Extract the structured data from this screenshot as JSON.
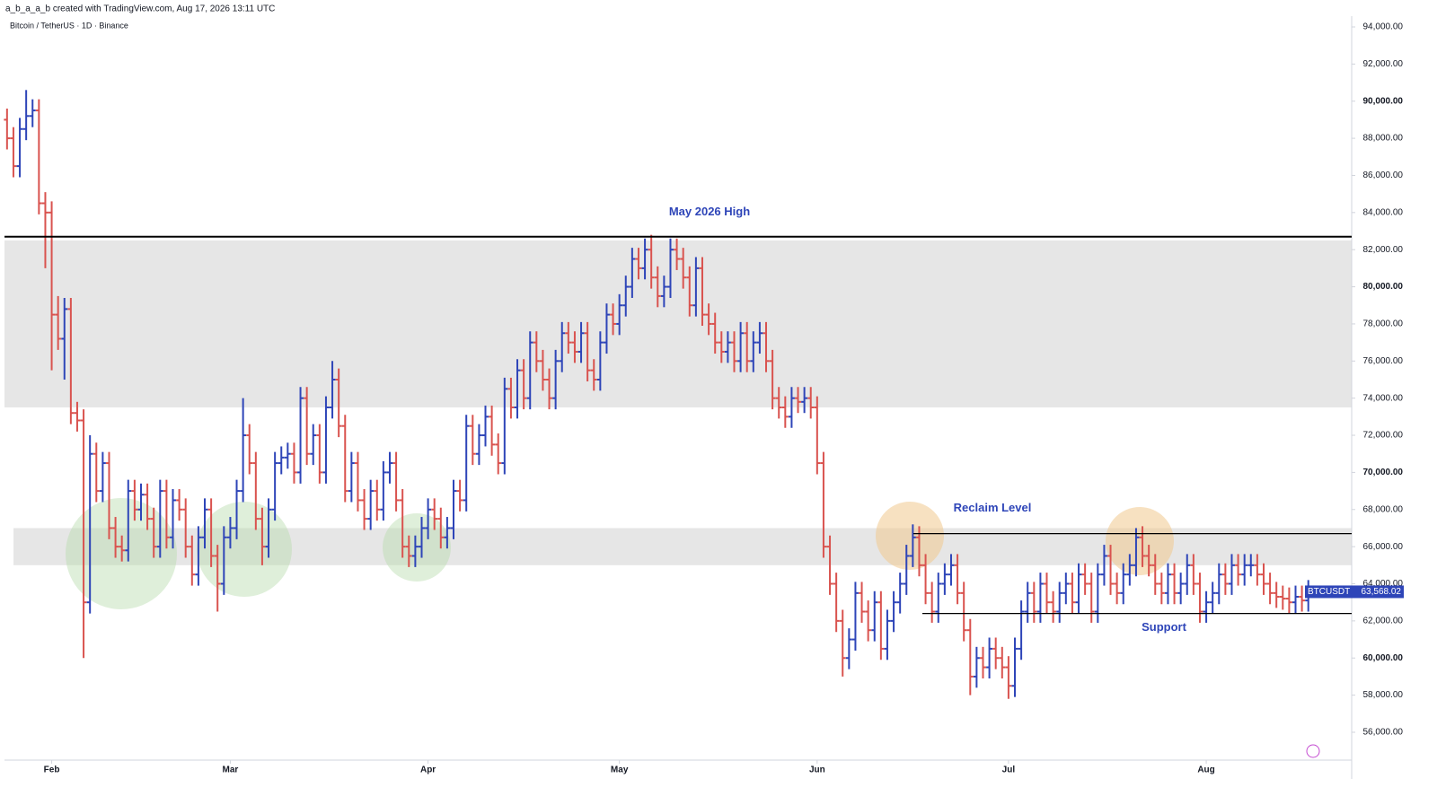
{
  "header": {
    "credit": "a_b_a_a_b created with TradingView.com, Aug 17, 2026 13:11 UTC"
  },
  "chart_data": {
    "type": "ohlc",
    "title": "Bitcoin / TetherUS · 1D · Binance",
    "up_color": "#2e45b8",
    "down_color": "#d9534f",
    "ylim": [
      54500,
      94580
    ],
    "xlim": [
      -0.4,
      210.8
    ],
    "yticks": [
      {
        "value": 56000,
        "label": "56,000.00"
      },
      {
        "value": 58000,
        "label": "58,000.00"
      },
      {
        "value": 60000,
        "label": "60,000.00"
      },
      {
        "value": 62000,
        "label": "62,000.00"
      },
      {
        "value": 64000,
        "label": "64,000.00"
      },
      {
        "value": 66000,
        "label": "66,000.00"
      },
      {
        "value": 68000,
        "label": "68,000.00"
      },
      {
        "value": 70000,
        "label": "70,000.00"
      },
      {
        "value": 72000,
        "label": "72,000.00"
      },
      {
        "value": 74000,
        "label": "74,000.00"
      },
      {
        "value": 76000,
        "label": "76,000.00"
      },
      {
        "value": 78000,
        "label": "78,000.00"
      },
      {
        "value": 80000,
        "label": "80,000.00"
      },
      {
        "value": 82000,
        "label": "82,000.00"
      },
      {
        "value": 84000,
        "label": "84,000.00"
      },
      {
        "value": 86000,
        "label": "86,000.00"
      },
      {
        "value": 88000,
        "label": "88,000.00"
      },
      {
        "value": 90000,
        "label": "90,000.00"
      },
      {
        "value": 92000,
        "label": "92,000.00"
      },
      {
        "value": 94000,
        "label": "94,000.00"
      }
    ],
    "xticks": [
      {
        "value": 7,
        "label": "Feb"
      },
      {
        "value": 35,
        "label": "Mar"
      },
      {
        "value": 66,
        "label": "Apr"
      },
      {
        "value": 96,
        "label": "May"
      },
      {
        "value": 127,
        "label": "Jun"
      },
      {
        "value": 157,
        "label": "Jul"
      },
      {
        "value": 188,
        "label": "Aug"
      }
    ],
    "zones": [
      [
        73500,
        82500
      ],
      [
        65000,
        67000
      ]
    ],
    "levels": [
      {
        "label": "May 2026 High",
        "value": 82700
      },
      {
        "label": "Reclaim Level",
        "value": 66700
      },
      {
        "label": "Support",
        "value": 62400
      }
    ],
    "last_price": {
      "symbol": "BTCUSDT",
      "label": "63,568.02"
    },
    "ohlc": [
      [
        89000,
        89600,
        87400,
        88000
      ],
      [
        88000,
        88600,
        85900,
        86500
      ],
      [
        86500,
        89100,
        85900,
        88500
      ],
      [
        88500,
        90600,
        87900,
        89200
      ],
      [
        89200,
        90100,
        88600,
        89500
      ],
      [
        89500,
        90100,
        83900,
        84500
      ],
      [
        84500,
        85100,
        81000,
        84000
      ],
      [
        84000,
        84600,
        75500,
        78500
      ],
      [
        78500,
        79500,
        76600,
        77200
      ],
      [
        77200,
        79400,
        75000,
        78800
      ],
      [
        78800,
        79400,
        72600,
        73200
      ],
      [
        73200,
        73800,
        72200,
        72800
      ],
      [
        72800,
        73400,
        60000,
        63000
      ],
      [
        63000,
        72000,
        62400,
        71000
      ],
      [
        71000,
        71600,
        68400,
        69000
      ],
      [
        69000,
        71100,
        68400,
        70500
      ],
      [
        70500,
        71100,
        66400,
        67000
      ],
      [
        67000,
        67600,
        65400,
        66000
      ],
      [
        66000,
        66600,
        65200,
        65800
      ],
      [
        65800,
        69600,
        65200,
        69000
      ],
      [
        69000,
        69600,
        67400,
        68000
      ],
      [
        68000,
        69400,
        67400,
        68800
      ],
      [
        68800,
        69400,
        66900,
        67500
      ],
      [
        67500,
        68100,
        65400,
        66000
      ],
      [
        66000,
        69600,
        65400,
        69000
      ],
      [
        69000,
        69600,
        65900,
        66500
      ],
      [
        66500,
        69100,
        65900,
        68500
      ],
      [
        68500,
        69100,
        67400,
        68000
      ],
      [
        68000,
        68600,
        65400,
        66000
      ],
      [
        66000,
        66600,
        63900,
        64500
      ],
      [
        64500,
        67100,
        63900,
        66500
      ],
      [
        66500,
        68600,
        65900,
        68000
      ],
      [
        68000,
        68600,
        64900,
        65500
      ],
      [
        65500,
        66100,
        62500,
        64000
      ],
      [
        64000,
        67100,
        63400,
        66500
      ],
      [
        66500,
        67600,
        65900,
        67000
      ],
      [
        67000,
        69600,
        66400,
        69000
      ],
      [
        69000,
        74000,
        68400,
        72000
      ],
      [
        72000,
        72600,
        69900,
        70500
      ],
      [
        70500,
        71100,
        66900,
        67500
      ],
      [
        67500,
        68100,
        65000,
        66000
      ],
      [
        66000,
        68600,
        65400,
        68000
      ],
      [
        68000,
        71100,
        67400,
        70500
      ],
      [
        70500,
        71400,
        69900,
        70800
      ],
      [
        70800,
        71600,
        70200,
        71000
      ],
      [
        71000,
        71600,
        69400,
        70000
      ],
      [
        70000,
        74600,
        69400,
        74000
      ],
      [
        74000,
        74600,
        70400,
        71000
      ],
      [
        71000,
        72600,
        70400,
        72000
      ],
      [
        72000,
        72600,
        69400,
        70000
      ],
      [
        70000,
        74100,
        69400,
        73500
      ],
      [
        73500,
        76000,
        72900,
        75000
      ],
      [
        75000,
        75600,
        71900,
        72500
      ],
      [
        72500,
        73100,
        68400,
        69000
      ],
      [
        69000,
        71100,
        68400,
        70500
      ],
      [
        70500,
        71100,
        67900,
        68500
      ],
      [
        68500,
        69100,
        66900,
        67500
      ],
      [
        67500,
        69600,
        66900,
        69000
      ],
      [
        69000,
        69600,
        67400,
        68000
      ],
      [
        68000,
        70600,
        67400,
        70000
      ],
      [
        70000,
        71100,
        69400,
        70500
      ],
      [
        70500,
        71100,
        67900,
        68500
      ],
      [
        68500,
        69100,
        65400,
        66000
      ],
      [
        66000,
        66600,
        64900,
        65500
      ],
      [
        65500,
        66600,
        64900,
        66000
      ],
      [
        66000,
        67600,
        65400,
        67000
      ],
      [
        67000,
        68600,
        66400,
        68000
      ],
      [
        68000,
        68600,
        66900,
        67500
      ],
      [
        67500,
        68100,
        65900,
        66500
      ],
      [
        66500,
        67600,
        65900,
        67000
      ],
      [
        67000,
        69600,
        66400,
        69000
      ],
      [
        69000,
        69600,
        67900,
        68500
      ],
      [
        68500,
        73100,
        67900,
        72500
      ],
      [
        72500,
        73100,
        70400,
        71000
      ],
      [
        71000,
        72600,
        70400,
        72000
      ],
      [
        72000,
        73600,
        71400,
        73000
      ],
      [
        73000,
        73600,
        70900,
        71500
      ],
      [
        71500,
        72100,
        69900,
        70500
      ],
      [
        70500,
        75100,
        69900,
        74500
      ],
      [
        74500,
        75100,
        72900,
        73500
      ],
      [
        73500,
        76100,
        72900,
        75500
      ],
      [
        75500,
        76100,
        73400,
        74000
      ],
      [
        74000,
        77600,
        73400,
        77000
      ],
      [
        77000,
        77600,
        75400,
        76000
      ],
      [
        76000,
        76600,
        74400,
        75000
      ],
      [
        75000,
        75600,
        73400,
        74000
      ],
      [
        74000,
        76600,
        73400,
        76000
      ],
      [
        76000,
        78100,
        75400,
        77500
      ],
      [
        77500,
        78100,
        76400,
        77000
      ],
      [
        77000,
        77600,
        75900,
        76500
      ],
      [
        76500,
        78100,
        75900,
        77500
      ],
      [
        77500,
        78100,
        74900,
        75500
      ],
      [
        75500,
        76100,
        74400,
        75000
      ],
      [
        75000,
        77600,
        74400,
        77000
      ],
      [
        77000,
        79100,
        76400,
        78500
      ],
      [
        78500,
        79100,
        77400,
        78000
      ],
      [
        78000,
        79600,
        77400,
        79000
      ],
      [
        79000,
        80600,
        78400,
        80000
      ],
      [
        80000,
        82100,
        79400,
        81500
      ],
      [
        81500,
        82100,
        80400,
        81000
      ],
      [
        81000,
        82600,
        80400,
        82000
      ],
      [
        82000,
        82800,
        79900,
        80500
      ],
      [
        80500,
        81100,
        78900,
        79500
      ],
      [
        79500,
        80600,
        78900,
        80000
      ],
      [
        80000,
        82600,
        79400,
        82000
      ],
      [
        82000,
        82600,
        80900,
        81500
      ],
      [
        81500,
        82100,
        79900,
        80500
      ],
      [
        80500,
        81100,
        78400,
        79000
      ],
      [
        79000,
        81600,
        78400,
        81000
      ],
      [
        81000,
        81600,
        77900,
        78500
      ],
      [
        78500,
        79100,
        77400,
        78000
      ],
      [
        78000,
        78600,
        76400,
        77000
      ],
      [
        77000,
        77600,
        75900,
        76500
      ],
      [
        76500,
        77600,
        75900,
        77000
      ],
      [
        77000,
        77600,
        75400,
        76000
      ],
      [
        76000,
        78100,
        75400,
        77500
      ],
      [
        77500,
        78100,
        75400,
        76000
      ],
      [
        76000,
        77600,
        75400,
        77000
      ],
      [
        77000,
        78100,
        76400,
        77500
      ],
      [
        77500,
        78100,
        75400,
        76000
      ],
      [
        76000,
        76600,
        73400,
        74000
      ],
      [
        74000,
        74600,
        72900,
        73500
      ],
      [
        73500,
        74100,
        72400,
        73000
      ],
      [
        73000,
        74600,
        72400,
        74000
      ],
      [
        74000,
        74600,
        73200,
        73800
      ],
      [
        73800,
        74600,
        73200,
        74000
      ],
      [
        74000,
        74600,
        72900,
        73500
      ],
      [
        73500,
        74100,
        69900,
        70500
      ],
      [
        70500,
        71100,
        65400,
        66000
      ],
      [
        66000,
        66600,
        63400,
        64000
      ],
      [
        64000,
        64600,
        61400,
        62000
      ],
      [
        62000,
        62600,
        59000,
        60000
      ],
      [
        60000,
        61600,
        59400,
        61000
      ],
      [
        61000,
        64100,
        60400,
        63500
      ],
      [
        63500,
        64100,
        61900,
        62500
      ],
      [
        62500,
        63100,
        60900,
        61500
      ],
      [
        61500,
        63600,
        60900,
        63000
      ],
      [
        63000,
        63600,
        59900,
        60500
      ],
      [
        60500,
        62600,
        59900,
        62000
      ],
      [
        62000,
        63600,
        61400,
        63000
      ],
      [
        63000,
        64600,
        62400,
        64000
      ],
      [
        64000,
        66100,
        63400,
        65500
      ],
      [
        65500,
        67200,
        64900,
        66500
      ],
      [
        66500,
        67100,
        64400,
        65000
      ],
      [
        65000,
        65600,
        62900,
        63500
      ],
      [
        63500,
        64100,
        61900,
        62500
      ],
      [
        62500,
        64600,
        61900,
        64000
      ],
      [
        64000,
        65100,
        63400,
        64500
      ],
      [
        64500,
        65600,
        63900,
        65000
      ],
      [
        65000,
        65600,
        62900,
        63500
      ],
      [
        63500,
        64100,
        60900,
        61500
      ],
      [
        61500,
        62100,
        58000,
        59000
      ],
      [
        59000,
        60600,
        58400,
        60000
      ],
      [
        60000,
        60600,
        58900,
        59500
      ],
      [
        59500,
        61100,
        58900,
        60500
      ],
      [
        60500,
        61100,
        59400,
        60000
      ],
      [
        60000,
        60600,
        58900,
        59500
      ],
      [
        59500,
        60100,
        57800,
        58500
      ],
      [
        58500,
        61100,
        57900,
        60500
      ],
      [
        60500,
        63100,
        59900,
        62500
      ],
      [
        62500,
        64100,
        61900,
        63500
      ],
      [
        63500,
        64100,
        61900,
        62500
      ],
      [
        62500,
        64600,
        61900,
        64000
      ],
      [
        64000,
        64600,
        62400,
        63000
      ],
      [
        63000,
        63600,
        61900,
        62500
      ],
      [
        62500,
        64100,
        61900,
        63500
      ],
      [
        63500,
        64600,
        62900,
        64000
      ],
      [
        64000,
        64600,
        62400,
        63000
      ],
      [
        63000,
        65100,
        62400,
        64500
      ],
      [
        64500,
        65100,
        63400,
        64000
      ],
      [
        64000,
        64600,
        61900,
        62500
      ],
      [
        62500,
        65100,
        61900,
        64500
      ],
      [
        64500,
        66100,
        63900,
        65500
      ],
      [
        65500,
        66100,
        63400,
        64000
      ],
      [
        64000,
        64600,
        62900,
        63500
      ],
      [
        63500,
        65100,
        62900,
        64500
      ],
      [
        64500,
        65600,
        63900,
        65000
      ],
      [
        65000,
        67000,
        64400,
        66500
      ],
      [
        66500,
        67100,
        64900,
        65500
      ],
      [
        65500,
        66100,
        64400,
        65000
      ],
      [
        65000,
        65600,
        63400,
        64000
      ],
      [
        64000,
        64600,
        62900,
        63500
      ],
      [
        63500,
        65100,
        62900,
        64500
      ],
      [
        64500,
        65100,
        62900,
        63500
      ],
      [
        63500,
        64600,
        62900,
        64000
      ],
      [
        64000,
        65600,
        63400,
        65000
      ],
      [
        65000,
        65600,
        63400,
        64000
      ],
      [
        64000,
        64600,
        61900,
        62500
      ],
      [
        62500,
        63600,
        61900,
        63000
      ],
      [
        63000,
        64100,
        62400,
        63500
      ],
      [
        63500,
        65100,
        62900,
        64500
      ],
      [
        64500,
        65100,
        63400,
        64000
      ],
      [
        64000,
        65600,
        63400,
        65000
      ],
      [
        65000,
        65600,
        63900,
        64500
      ],
      [
        64500,
        65600,
        63900,
        65000
      ],
      [
        65000,
        65600,
        64400,
        65000
      ],
      [
        65000,
        65600,
        63900,
        64500
      ],
      [
        64500,
        65100,
        63400,
        64000
      ],
      [
        64000,
        64600,
        62900,
        63500
      ],
      [
        63500,
        64100,
        62700,
        63300
      ],
      [
        63300,
        63900,
        62600,
        63200
      ],
      [
        63200,
        63800,
        62400,
        63000
      ],
      [
        63000,
        63900,
        62400,
        63300
      ],
      [
        63300,
        63900,
        62500,
        63100
      ],
      [
        63100,
        64200,
        62500,
        63568.02
      ]
    ]
  }
}
